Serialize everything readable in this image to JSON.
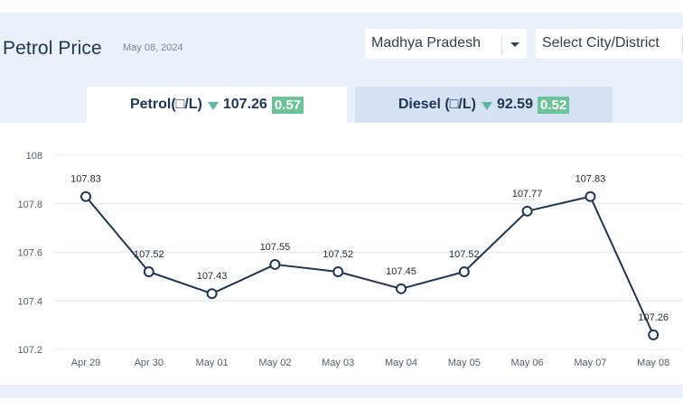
{
  "header": {
    "title": "Petrol Price",
    "date": "May 08, 2024"
  },
  "filters": {
    "state": "Madhya Pradesh",
    "city_placeholder": "Select City/District"
  },
  "tabs": [
    {
      "label": "Petrol(□/L)",
      "price": "107.26",
      "change": "0.57",
      "direction": "down"
    },
    {
      "label": "Diesel (□/L)",
      "price": "92.59",
      "change": "0.52",
      "direction": "down"
    }
  ],
  "colors": {
    "line": "#1f3552",
    "badge": "#6cc39a",
    "arrow_down": "#5bb89e",
    "grid": "#e3e7ec"
  },
  "chart_data": {
    "type": "line",
    "categories": [
      "Apr 29",
      "Apr 30",
      "May 01",
      "May 02",
      "May 03",
      "May 04",
      "May 05",
      "May 06",
      "May 07",
      "May 08"
    ],
    "values": [
      107.83,
      107.52,
      107.43,
      107.55,
      107.52,
      107.45,
      107.52,
      107.77,
      107.83,
      107.26
    ],
    "value_labels": [
      "107.83",
      "107.52",
      "107.43",
      "107.55",
      "107.52",
      "107.45",
      "107.52",
      "107.77",
      "107.83",
      "107.26"
    ],
    "yticks": [
      "107.2",
      "107.4",
      "107.6",
      "107.8",
      "108"
    ],
    "ylim": [
      107.2,
      108
    ],
    "grid": true,
    "markers": "open-circle"
  }
}
